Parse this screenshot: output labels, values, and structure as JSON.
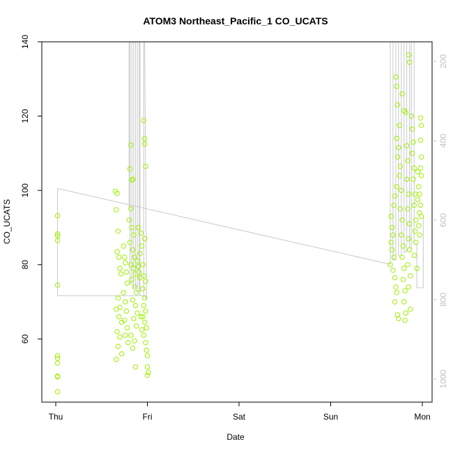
{
  "chart_data": {
    "type": "scatter",
    "title": "ATOM3 Northeast_Pacific_1 CO_UCATS",
    "xlabel": "Date",
    "ylabel": "CO_UCATS",
    "x_ticks": [
      "Thu",
      "Fri",
      "Sat",
      "Sun",
      "Mon"
    ],
    "xlim_days": [
      -0.08,
      4.15
    ],
    "ylim": [
      43,
      140
    ],
    "y_ticks": [
      60,
      80,
      100,
      120,
      140
    ],
    "y2_ticks": [
      200,
      400,
      600,
      800,
      1000
    ],
    "y2_lim": [
      140,
      1020
    ],
    "y2_reversed": true,
    "grid": false,
    "colors": {
      "points": "#9ef000",
      "altitude_line": "#c8c8c8",
      "axis": "#000000",
      "right_axis": "#c0c0c0"
    },
    "series": [
      {
        "values": [
          [
            0.02,
            93.2
          ],
          [
            0.02,
            88.3
          ],
          [
            0.02,
            87.8
          ],
          [
            0.02,
            86.5
          ],
          [
            0.02,
            74.5
          ],
          [
            0.02,
            55.5
          ],
          [
            0.02,
            54.8
          ],
          [
            0.02,
            53.5
          ],
          [
            0.02,
            50.0
          ],
          [
            0.02,
            49.8
          ],
          [
            0.02,
            45.8
          ],
          [
            0.65,
            99.8
          ],
          [
            0.67,
            99.2
          ],
          [
            0.66,
            94.8
          ],
          [
            0.68,
            89.0
          ],
          [
            0.67,
            83.5
          ],
          [
            0.69,
            82.0
          ],
          [
            0.7,
            79.0
          ],
          [
            0.71,
            77.5
          ],
          [
            0.68,
            71.0
          ],
          [
            0.7,
            68.5
          ],
          [
            0.66,
            68.0
          ],
          [
            0.69,
            66.0
          ],
          [
            0.72,
            64.5
          ],
          [
            0.67,
            62.0
          ],
          [
            0.7,
            60.5
          ],
          [
            0.68,
            58.0
          ],
          [
            0.66,
            54.5
          ],
          [
            0.72,
            56.0
          ],
          [
            0.74,
            85.0
          ],
          [
            0.75,
            82.0
          ],
          [
            0.76,
            80.5
          ],
          [
            0.77,
            78.0
          ],
          [
            0.78,
            75.0
          ],
          [
            0.74,
            72.5
          ],
          [
            0.76,
            70.0
          ],
          [
            0.77,
            67.5
          ],
          [
            0.75,
            65.0
          ],
          [
            0.78,
            63.0
          ],
          [
            0.76,
            61.0
          ],
          [
            0.79,
            59.0
          ],
          [
            0.8,
            92.0
          ],
          [
            0.81,
            105.8
          ],
          [
            0.82,
            112.2
          ],
          [
            0.83,
            102.8
          ],
          [
            0.84,
            103.0
          ],
          [
            0.82,
            95.0
          ],
          [
            0.83,
            90.0
          ],
          [
            0.85,
            88.0
          ],
          [
            0.81,
            86.0
          ],
          [
            0.84,
            84.0
          ],
          [
            0.86,
            82.0
          ],
          [
            0.82,
            80.0
          ],
          [
            0.85,
            79.0
          ],
          [
            0.87,
            77.5
          ],
          [
            0.83,
            76.0
          ],
          [
            0.86,
            74.0
          ],
          [
            0.88,
            72.5
          ],
          [
            0.84,
            70.5
          ],
          [
            0.87,
            69.0
          ],
          [
            0.89,
            67.0
          ],
          [
            0.85,
            65.5
          ],
          [
            0.88,
            63.5
          ],
          [
            0.82,
            61.0
          ],
          [
            0.86,
            59.5
          ],
          [
            0.84,
            57.5
          ],
          [
            0.87,
            52.5
          ],
          [
            0.89,
            81.0
          ],
          [
            0.9,
            79.5
          ],
          [
            0.91,
            78.0
          ],
          [
            0.92,
            76.5
          ],
          [
            0.9,
            90.0
          ],
          [
            0.93,
            88.5
          ],
          [
            0.94,
            85.0
          ],
          [
            0.92,
            83.0
          ],
          [
            0.96,
            118.8
          ],
          [
            0.97,
            114.0
          ],
          [
            0.97,
            112.5
          ],
          [
            0.98,
            106.5
          ],
          [
            0.97,
            87.0
          ],
          [
            0.95,
            80.0
          ],
          [
            0.96,
            77.0
          ],
          [
            0.98,
            75.5
          ],
          [
            0.95,
            73.5
          ],
          [
            0.97,
            71.0
          ],
          [
            0.96,
            69.0
          ],
          [
            0.98,
            67.5
          ],
          [
            0.95,
            66.0
          ],
          [
            0.97,
            64.5
          ],
          [
            0.99,
            63.0
          ],
          [
            0.96,
            61.0
          ],
          [
            0.98,
            59.0
          ],
          [
            0.99,
            57.0
          ],
          [
            1.0,
            55.5
          ],
          [
            1.0,
            52.5
          ],
          [
            1.01,
            51.0
          ],
          [
            1.0,
            50.2
          ],
          [
            0.94,
            62.5
          ],
          [
            0.93,
            66.0
          ],
          [
            3.66,
            93.0
          ],
          [
            3.67,
            90.0
          ],
          [
            3.68,
            88.0
          ],
          [
            3.66,
            86.0
          ],
          [
            3.67,
            84.0
          ],
          [
            3.69,
            82.0
          ],
          [
            3.65,
            80.0
          ],
          [
            3.68,
            78.5
          ],
          [
            3.7,
            76.5
          ],
          [
            3.71,
            74.0
          ],
          [
            3.72,
            72.5
          ],
          [
            3.7,
            70.0
          ],
          [
            3.73,
            66.5
          ],
          [
            3.74,
            65.5
          ],
          [
            3.69,
            96.0
          ],
          [
            3.7,
            98.5
          ],
          [
            3.72,
            101.0
          ],
          [
            3.71,
            130.5
          ],
          [
            3.72,
            128.0
          ],
          [
            3.73,
            123.0
          ],
          [
            3.72,
            114.0
          ],
          [
            3.74,
            111.5
          ],
          [
            3.73,
            109.0
          ],
          [
            3.75,
            117.5
          ],
          [
            3.76,
            106.5
          ],
          [
            3.75,
            104.0
          ],
          [
            3.77,
            100.0
          ],
          [
            3.76,
            95.0
          ],
          [
            3.78,
            92.0
          ],
          [
            3.77,
            88.0
          ],
          [
            3.79,
            85.0
          ],
          [
            3.78,
            82.0
          ],
          [
            3.8,
            79.0
          ],
          [
            3.79,
            76.0
          ],
          [
            3.81,
            73.0
          ],
          [
            3.8,
            70.0
          ],
          [
            3.82,
            67.0
          ],
          [
            3.81,
            65.0
          ],
          [
            3.78,
            126.0
          ],
          [
            3.8,
            121.5
          ],
          [
            3.82,
            121.0
          ],
          [
            3.83,
            112.0
          ],
          [
            3.84,
            108.0
          ],
          [
            3.83,
            103.0
          ],
          [
            3.85,
            99.0
          ],
          [
            3.84,
            95.0
          ],
          [
            3.86,
            91.0
          ],
          [
            3.85,
            87.0
          ],
          [
            3.86,
            84.0
          ],
          [
            3.84,
            80.0
          ],
          [
            3.87,
            77.0
          ],
          [
            3.85,
            74.0
          ],
          [
            3.87,
            68.0
          ],
          [
            3.85,
            136.5
          ],
          [
            3.86,
            134.5
          ],
          [
            3.88,
            120.0
          ],
          [
            3.89,
            116.5
          ],
          [
            3.9,
            113.0
          ],
          [
            3.89,
            110.0
          ],
          [
            3.91,
            106.0
          ],
          [
            3.9,
            103.0
          ],
          [
            3.92,
            99.0
          ],
          [
            3.91,
            96.0
          ],
          [
            3.93,
            92.0
          ],
          [
            3.92,
            89.0
          ],
          [
            3.93,
            86.0
          ],
          [
            3.91,
            82.5
          ],
          [
            3.94,
            79.0
          ],
          [
            3.95,
            105.0
          ],
          [
            3.96,
            101.0
          ],
          [
            3.95,
            97.5
          ],
          [
            3.97,
            94.0
          ],
          [
            3.96,
            90.5
          ],
          [
            3.97,
            88.0
          ],
          [
            3.98,
            119.5
          ],
          [
            3.99,
            117.5
          ],
          [
            3.98,
            113.5
          ],
          [
            3.99,
            109.0
          ],
          [
            3.98,
            106.0
          ],
          [
            3.99,
            104.0
          ],
          [
            3.97,
            99.0
          ],
          [
            3.98,
            96.0
          ],
          [
            3.99,
            93.0
          ]
        ]
      }
    ],
    "altitude_trace": [
      [
        0.02,
        770
      ],
      [
        0.02,
        520
      ],
      [
        0.02,
        790
      ],
      [
        0.98,
        790
      ],
      [
        0.985,
        800
      ],
      [
        0.99,
        790
      ],
      [
        0.97,
        140
      ],
      [
        0.96,
        140
      ],
      [
        0.96,
        790
      ],
      [
        0.92,
        790
      ],
      [
        0.92,
        140
      ],
      [
        0.91,
        140
      ],
      [
        0.91,
        780
      ],
      [
        0.89,
        780
      ],
      [
        0.89,
        140
      ],
      [
        0.87,
        140
      ],
      [
        0.87,
        770
      ],
      [
        0.85,
        770
      ],
      [
        0.85,
        140
      ],
      [
        0.83,
        140
      ],
      [
        0.83,
        760
      ],
      [
        0.81,
        760
      ],
      [
        0.81,
        140
      ],
      [
        0.8,
        140
      ],
      [
        0.8,
        570
      ],
      [
        3.63,
        710
      ],
      [
        3.65,
        710
      ],
      [
        3.65,
        140
      ],
      [
        3.68,
        140
      ],
      [
        3.68,
        700
      ],
      [
        3.71,
        700
      ],
      [
        3.71,
        140
      ],
      [
        3.74,
        140
      ],
      [
        3.74,
        690
      ],
      [
        3.77,
        690
      ],
      [
        3.77,
        140
      ],
      [
        3.8,
        140
      ],
      [
        3.8,
        680
      ],
      [
        3.83,
        680
      ],
      [
        3.83,
        140
      ],
      [
        3.86,
        140
      ],
      [
        3.86,
        670
      ],
      [
        3.88,
        670
      ],
      [
        3.88,
        140
      ],
      [
        3.91,
        140
      ],
      [
        3.91,
        660
      ],
      [
        3.94,
        660
      ],
      [
        3.94,
        770
      ],
      [
        4.01,
        770
      ],
      [
        4.01,
        590
      ]
    ]
  }
}
